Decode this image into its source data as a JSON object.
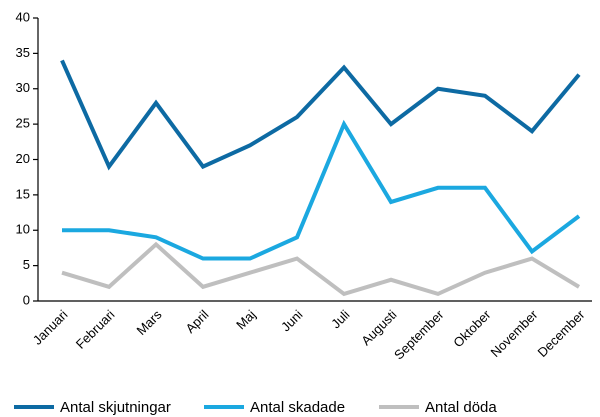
{
  "chart_data": {
    "type": "line",
    "categories": [
      "Januari",
      "Februari",
      "Mars",
      "April",
      "Maj",
      "Juni",
      "Juli",
      "Augusti",
      "September",
      "Oktober",
      "November",
      "December"
    ],
    "series": [
      {
        "name": "Antal skjutningar",
        "color": "#0d6aa3",
        "values": [
          34,
          19,
          28,
          19,
          22,
          26,
          33,
          25,
          30,
          29,
          24,
          32
        ]
      },
      {
        "name": "Antal skadade",
        "color": "#1ba8e0",
        "values": [
          10,
          10,
          9,
          6,
          6,
          9,
          25,
          14,
          16,
          16,
          7,
          12
        ]
      },
      {
        "name": "Antal döda",
        "color": "#bfbfbf",
        "values": [
          4,
          2,
          8,
          2,
          4,
          6,
          1,
          3,
          1,
          4,
          6,
          2
        ]
      }
    ],
    "ylim": [
      0,
      40
    ],
    "yticks": [
      0,
      5,
      10,
      15,
      20,
      25,
      30,
      35,
      40
    ],
    "grid": false,
    "legend": "bottom"
  }
}
